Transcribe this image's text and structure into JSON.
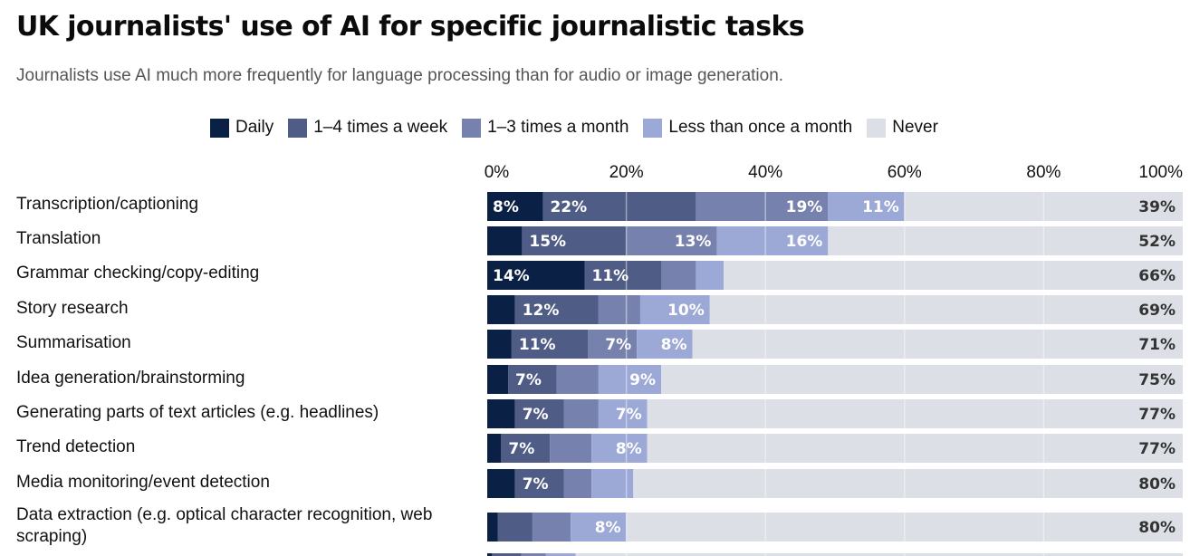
{
  "chart_data": {
    "type": "bar",
    "orientation": "horizontal-stacked-100",
    "title": "UK journalists' use of AI for specific journalistic tasks",
    "subtitle": "Journalists use AI much more frequently for language processing than for audio or image generation.",
    "xlabel": "",
    "ylabel": "",
    "xlim": [
      0,
      100
    ],
    "x_ticks": [
      "0%",
      "20%",
      "40%",
      "60%",
      "80%",
      "100%"
    ],
    "grid": true,
    "legend_position": "top",
    "categories": [
      "Transcription/captioning",
      "Translation",
      "Grammar checking/copy-editing",
      "Story research",
      "Summarisation",
      "Idea generation/brainstorming",
      "Generating parts of text articles (e.g. headlines)",
      "Trend detection",
      "Media monitoring/event detection",
      "Data extraction (e.g. optical character recognition, web scraping)"
    ],
    "series": [
      {
        "name": "Daily",
        "color": "#0b2045",
        "values": [
          8,
          5,
          14,
          4,
          3.5,
          3,
          4,
          2,
          4,
          1.5
        ],
        "labels": [
          "8%",
          "",
          "14%",
          "",
          "",
          "",
          "",
          "",
          "",
          ""
        ]
      },
      {
        "name": "1–4 times a week",
        "color": "#4f5c86",
        "values": [
          22,
          15,
          11,
          12,
          11,
          7,
          7,
          7,
          7,
          5
        ],
        "labels": [
          "22%",
          "15%",
          "11%",
          "12%",
          "11%",
          "7%",
          "7%",
          "7%",
          "7%",
          ""
        ]
      },
      {
        "name": "1–3 times a month",
        "color": "#7682ad",
        "values": [
          19,
          13,
          5,
          6,
          7,
          6,
          5,
          6,
          4,
          5.5
        ],
        "labels": [
          "19%",
          "13%",
          "",
          "",
          "7%",
          "",
          "",
          "",
          "",
          ""
        ]
      },
      {
        "name": "Less than once a month",
        "color": "#9ca9d6",
        "values": [
          11,
          16,
          4,
          10,
          8,
          9,
          7,
          8,
          6,
          8
        ],
        "labels": [
          "11%",
          "16%",
          "",
          "10%",
          "8%",
          "9%",
          "7%",
          "8%",
          "",
          "8%"
        ]
      },
      {
        "name": "Never",
        "color": "#dcdfe6",
        "values": [
          39,
          52,
          66,
          69,
          71,
          75,
          77,
          77,
          80,
          80
        ],
        "labels": [
          "39%",
          "52%",
          "66%",
          "69%",
          "71%",
          "75%",
          "77%",
          "77%",
          "80%",
          "80%"
        ]
      }
    ],
    "partial_row_cut_off": {
      "values": [
        0.7,
        4.2,
        3.5,
        4.3,
        87.3
      ]
    }
  }
}
